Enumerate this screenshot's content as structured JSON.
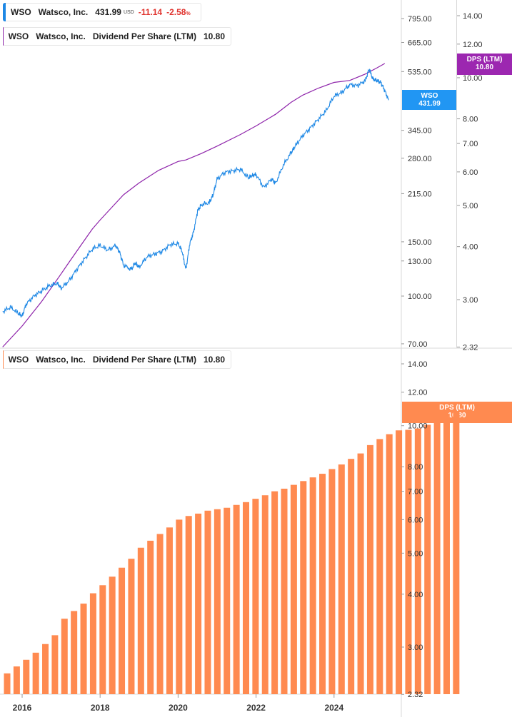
{
  "colors": {
    "price_line": "#1e88e5",
    "dps_line": "#8e24aa",
    "dps_bar": "#ff8a50",
    "negative": "#e0332e",
    "wso_tag": "#2196f3",
    "dps_tag_top": "#9c27b0",
    "dps_tag_bottom": "#ff8a50"
  },
  "legend_price": {
    "symbol": "WSO",
    "name": "Watsco, Inc.",
    "price": "431.99",
    "currency": "USD",
    "change": "-11.14",
    "change_pct": "-2.58",
    "pct_sign": "%"
  },
  "legend_dps_top": {
    "symbol": "WSO",
    "name": "Watsco, Inc.",
    "metric": "Dividend Per Share (LTM)",
    "value": "10.80"
  },
  "legend_dps_bottom": {
    "symbol": "WSO",
    "name": "Watsco, Inc.",
    "metric": "Dividend Per Share (LTM)",
    "value": "10.80"
  },
  "tags": {
    "wso_label": "WSO",
    "wso_value": "431.99",
    "dps_top_label": "DPS (LTM)",
    "dps_top_value": "10.80",
    "dps_bottom_label": "DPS (LTM)",
    "dps_bottom_value": "10.80"
  },
  "chart_data": [
    {
      "type": "line",
      "title": "",
      "scale": "log",
      "x_ticks": [
        "2016",
        "2018",
        "2020",
        "2022",
        "2024"
      ],
      "y_left_ticks": [
        "795.00",
        "665.00",
        "535.00",
        "345.00",
        "280.00",
        "215.00",
        "150.00",
        "130.00",
        "100.00",
        "70.00"
      ],
      "y_right_ticks": [
        "14.00",
        "12.00",
        "10.00",
        "8.00",
        "7.00",
        "6.00",
        "5.00",
        "4.00",
        "3.00",
        "2.32"
      ],
      "ylim_left": [
        70,
        795
      ],
      "ylim_right": [
        2.32,
        14
      ],
      "series": [
        {
          "name": "WSO",
          "axis": "left",
          "x": [
            2015.5,
            2015.7,
            2015.9,
            2016.0,
            2016.1,
            2016.3,
            2016.5,
            2016.7,
            2016.9,
            2017.0,
            2017.2,
            2017.4,
            2017.6,
            2017.8,
            2018.0,
            2018.2,
            2018.4,
            2018.5,
            2018.6,
            2018.8,
            2018.9,
            2019.0,
            2019.2,
            2019.4,
            2019.6,
            2019.8,
            2020.0,
            2020.1,
            2020.2,
            2020.3,
            2020.4,
            2020.5,
            2020.6,
            2020.8,
            2020.9,
            2021.0,
            2021.2,
            2021.4,
            2021.6,
            2021.8,
            2021.9,
            2022.0,
            2022.2,
            2022.4,
            2022.5,
            2022.7,
            2022.9,
            2023.0,
            2023.2,
            2023.4,
            2023.6,
            2023.8,
            2024.0,
            2024.2,
            2024.4,
            2024.6,
            2024.8,
            2024.9,
            2025.0,
            2025.1,
            2025.2,
            2025.3,
            2025.4
          ],
          "values": [
            89,
            92,
            88,
            86,
            94,
            100,
            104,
            108,
            110,
            106,
            112,
            122,
            132,
            142,
            146,
            141,
            146,
            139,
            126,
            122,
            128,
            124,
            134,
            137,
            140,
            147,
            148,
            140,
            122,
            148,
            162,
            189,
            198,
            201,
            213,
            240,
            252,
            255,
            258,
            242,
            246,
            248,
            225,
            240,
            232,
            266,
            292,
            306,
            332,
            352,
            375,
            400,
            445,
            458,
            485,
            482,
            500,
            545,
            505,
            500,
            493,
            465,
            432
          ]
        },
        {
          "name": "Dividend Per Share (LTM)",
          "axis": "right",
          "x": [
            2015.5,
            2016.0,
            2016.5,
            2016.95,
            2017.2,
            2017.5,
            2017.8,
            2018.0,
            2018.3,
            2018.6,
            2019.0,
            2019.5,
            2020.0,
            2020.2,
            2020.6,
            2021.0,
            2021.6,
            2022.0,
            2022.5,
            2022.9,
            2023.2,
            2023.6,
            2024.0,
            2024.4,
            2024.8,
            2025.1,
            2025.3
          ],
          "values": [
            2.32,
            2.6,
            2.97,
            3.4,
            3.67,
            4.02,
            4.4,
            4.62,
            4.95,
            5.3,
            5.65,
            6.05,
            6.35,
            6.4,
            6.63,
            6.9,
            7.35,
            7.7,
            8.2,
            8.75,
            9.1,
            9.45,
            9.75,
            9.85,
            10.2,
            10.55,
            10.8
          ]
        }
      ]
    },
    {
      "type": "bar",
      "title": "",
      "scale": "log",
      "x_ticks": [
        "2016",
        "2018",
        "2020",
        "2022",
        "2024"
      ],
      "y_ticks": [
        "14.00",
        "12.00",
        "10.00",
        "8.00",
        "7.00",
        "6.00",
        "5.00",
        "4.00",
        "3.00",
        "2.32"
      ],
      "ylim": [
        2.32,
        14
      ],
      "series": [
        {
          "name": "Dividend Per Share (LTM)",
          "values": [
            2.6,
            2.7,
            2.8,
            2.91,
            3.05,
            3.2,
            3.5,
            3.65,
            3.8,
            4.02,
            4.2,
            4.4,
            4.62,
            4.85,
            5.15,
            5.35,
            5.55,
            5.75,
            6.0,
            6.12,
            6.2,
            6.3,
            6.35,
            6.4,
            6.5,
            6.6,
            6.72,
            6.85,
            7.0,
            7.1,
            7.25,
            7.4,
            7.55,
            7.7,
            7.9,
            8.1,
            8.35,
            8.6,
            9.0,
            9.3,
            9.55,
            9.75,
            9.78,
            9.85,
            10.05,
            10.3,
            10.5,
            10.8
          ]
        }
      ]
    }
  ]
}
